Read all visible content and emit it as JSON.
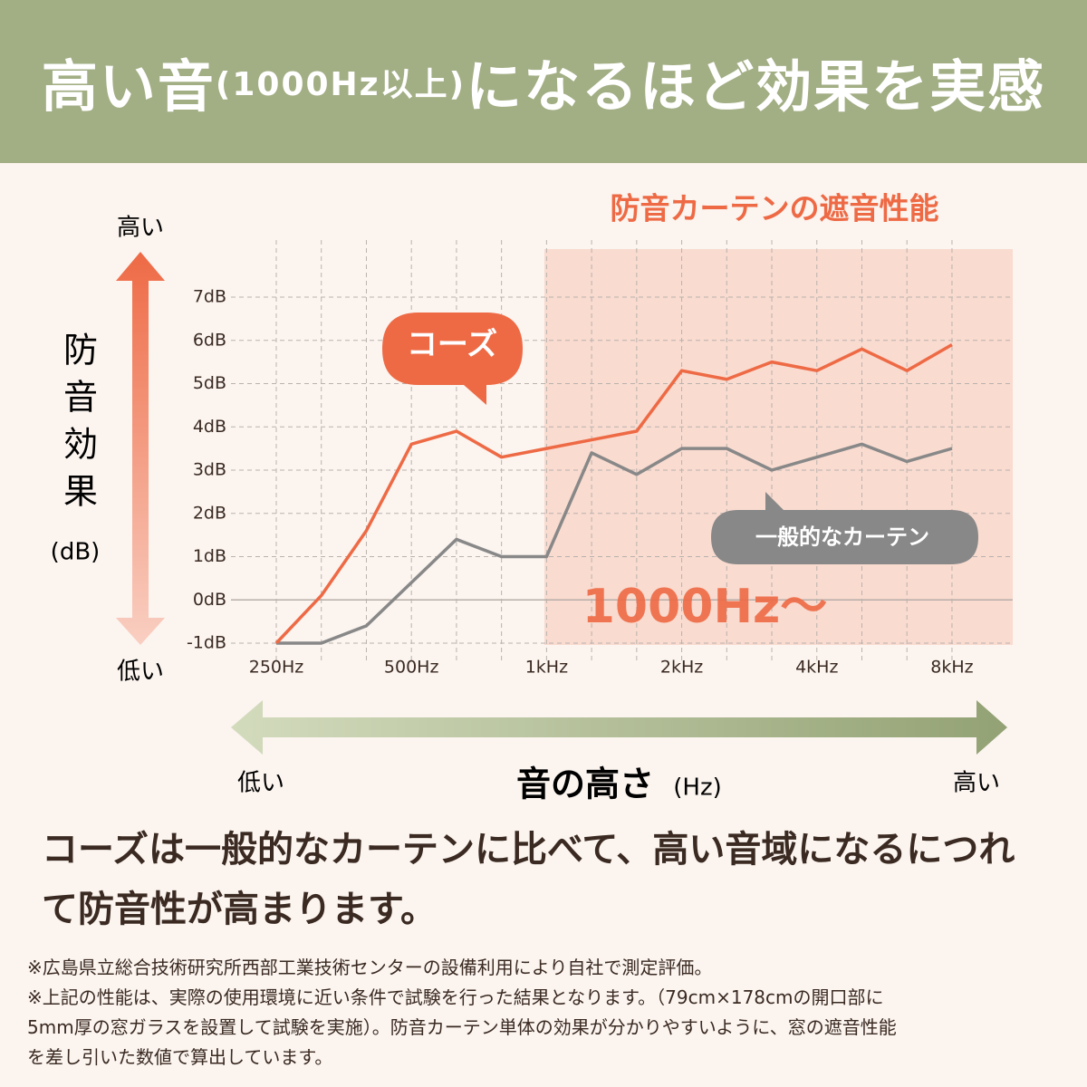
{
  "header": {
    "title": [
      "高い音",
      "(1000Hz以上)",
      "になるほど効果を実感"
    ]
  },
  "chart_data": {
    "type": "line",
    "title": "防音カーテンの遮音性能",
    "annotation": "1000Hz〜",
    "y_axis_label": "防音効果",
    "y_axis_unit": "(dB)",
    "y_axis_high": "高い",
    "y_axis_low": "低い",
    "x_axis_label": "音の高さ",
    "x_axis_unit": "(Hz)",
    "x_axis_low": "低い",
    "x_axis_high": "高い",
    "categories": [
      "250Hz",
      null,
      null,
      "500Hz",
      null,
      null,
      "1kHz",
      null,
      null,
      "2kHz",
      null,
      null,
      "4kHz",
      null,
      null,
      "8kHz"
    ],
    "series": [
      {
        "name": "コーズ",
        "color": "#ee6a45",
        "values": [
          -1.0,
          0.1,
          1.6,
          3.6,
          3.9,
          3.3,
          3.5,
          3.7,
          3.9,
          5.3,
          5.1,
          5.5,
          5.3,
          5.8,
          5.3,
          5.9
        ]
      },
      {
        "name": "一般的なカーテン",
        "color": "#888888",
        "values": [
          -1.0,
          -1.0,
          -0.6,
          0.4,
          1.4,
          1.0,
          1.0,
          3.4,
          2.9,
          3.5,
          3.5,
          3.0,
          3.3,
          3.6,
          3.2,
          3.5
        ]
      }
    ],
    "ylim": [
      -1,
      7
    ],
    "yticks": [
      {
        "value": -1,
        "label": "-1dB"
      },
      {
        "value": 0,
        "label": "0dB"
      },
      {
        "value": 1,
        "label": "1dB"
      },
      {
        "value": 2,
        "label": "2dB"
      },
      {
        "value": 3,
        "label": "3dB"
      },
      {
        "value": 4,
        "label": "4dB"
      },
      {
        "value": 5,
        "label": "5dB"
      },
      {
        "value": 6,
        "label": "6dB"
      },
      {
        "value": 7,
        "label": "7dB"
      }
    ],
    "grid": true
  },
  "summary": [
    "コーズは一般的なカーテンに比べて、高い音域になるにつれ",
    "て防音性が高まります。"
  ],
  "notes": [
    "※広島県立総合技術研究所西部工業技術センターの設備利用により自社で測定評価。",
    "※上記の性能は、実際の使用環境に近い条件で試験を行った結果となります。（79cm×178cmの開口部に",
    "5mm厚の窓ガラスを設置して試験を実施）。防音カーテン単体の効果が分かりやすいように、窓の遮音性能",
    "を差し引いた数値で算出しています。"
  ]
}
